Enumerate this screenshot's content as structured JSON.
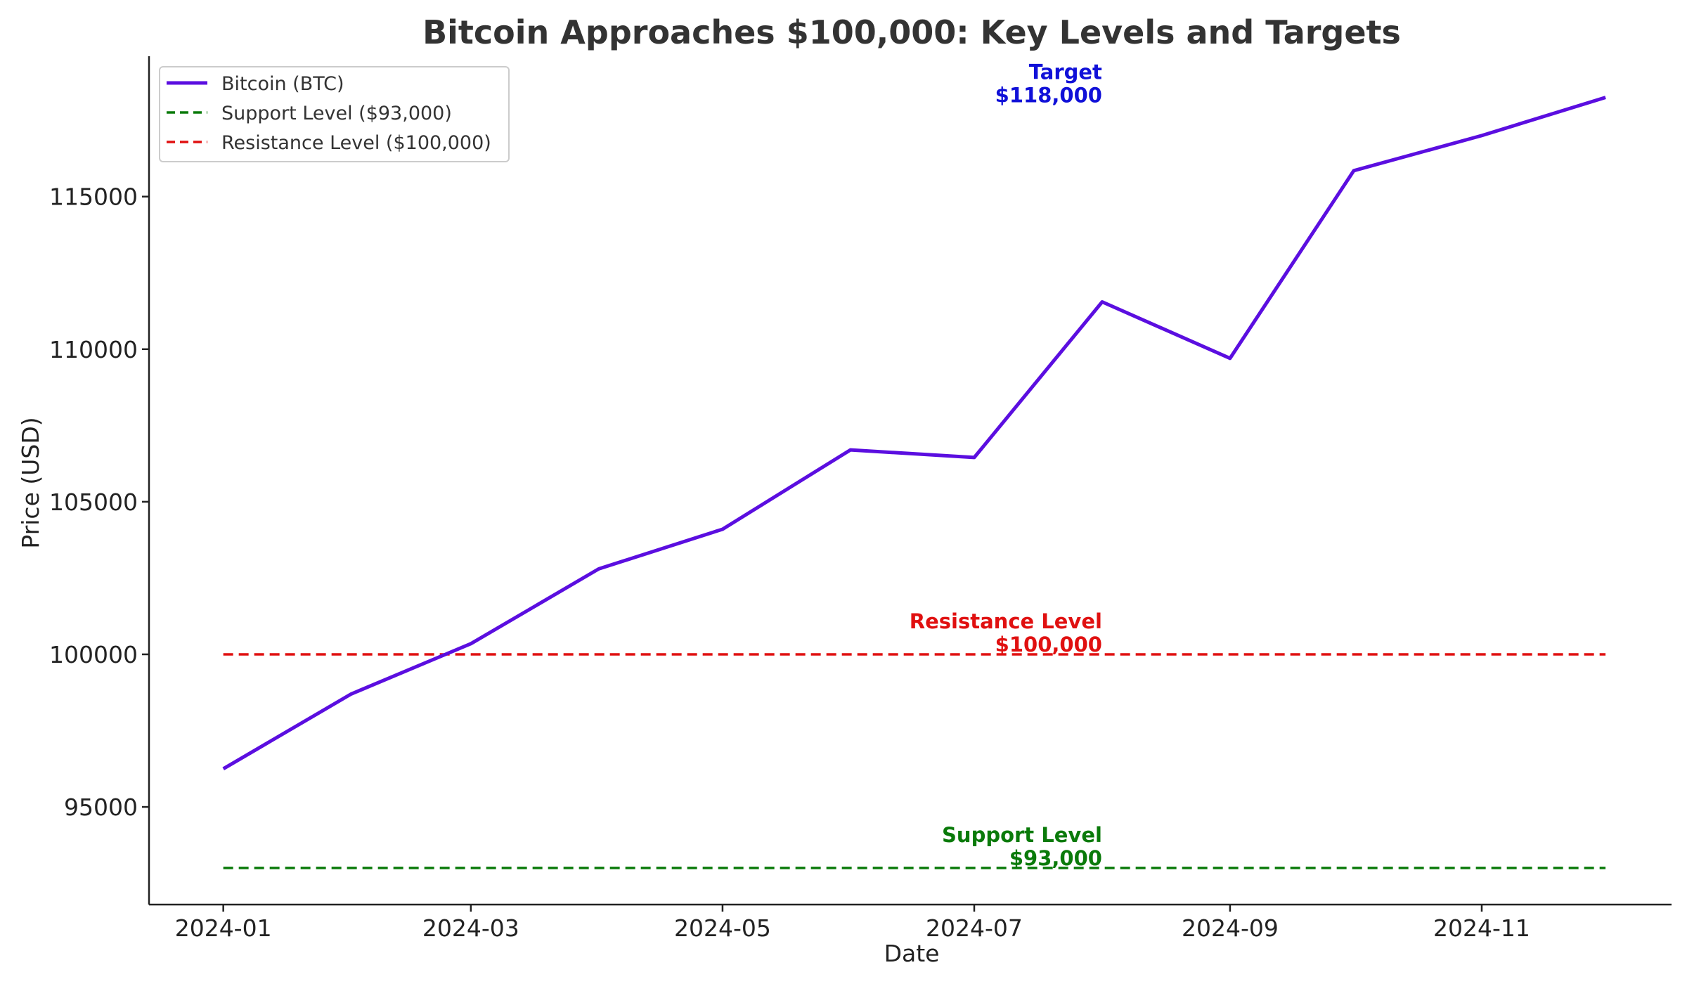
{
  "chart_data": {
    "type": "line",
    "title": "Bitcoin Approaches $100,000: Key Levels and Targets",
    "xlabel": "Date",
    "ylabel": "Price (USD)",
    "x": [
      "2024-01-01",
      "2024-02-01",
      "2024-03-01",
      "2024-04-01",
      "2024-05-01",
      "2024-06-01",
      "2024-07-01",
      "2024-08-01",
      "2024-09-01",
      "2024-10-01",
      "2024-11-01",
      "2024-12-01"
    ],
    "xlim": [
      "2023-12-14",
      "2024-12-17"
    ],
    "ylim": [
      91800,
      119600
    ],
    "x_ticks": [
      "2024-01",
      "2024-03",
      "2024-05",
      "2024-07",
      "2024-09",
      "2024-11"
    ],
    "y_ticks": [
      95000,
      100000,
      105000,
      110000,
      115000
    ],
    "series": [
      {
        "name": "Bitcoin (BTC)",
        "color": "#5b0ee0",
        "style": "solid",
        "values": [
          96250,
          98700,
          100350,
          102800,
          104100,
          106700,
          106450,
          111550,
          109700,
          115850,
          117000,
          118250
        ]
      },
      {
        "name": "Support Level ($93,000)",
        "color": "#0a7a0a",
        "style": "dashed",
        "level": 93000
      },
      {
        "name": "Resistance Level ($100,000)",
        "color": "#e01010",
        "style": "dashed",
        "level": 100000
      }
    ],
    "annotations": [
      {
        "lines": [
          "Target",
          "$118,000"
        ],
        "x": "2024-08-01",
        "y": 118000,
        "color": "#1010d8"
      },
      {
        "lines": [
          "Resistance Level",
          "$100,000"
        ],
        "x": "2024-08-01",
        "y": 100000,
        "color": "#e01010"
      },
      {
        "lines": [
          "Support Level",
          "$93,000"
        ],
        "x": "2024-08-01",
        "y": 93000,
        "color": "#0a7a0a"
      }
    ],
    "legend": "top-left",
    "grid": false
  }
}
